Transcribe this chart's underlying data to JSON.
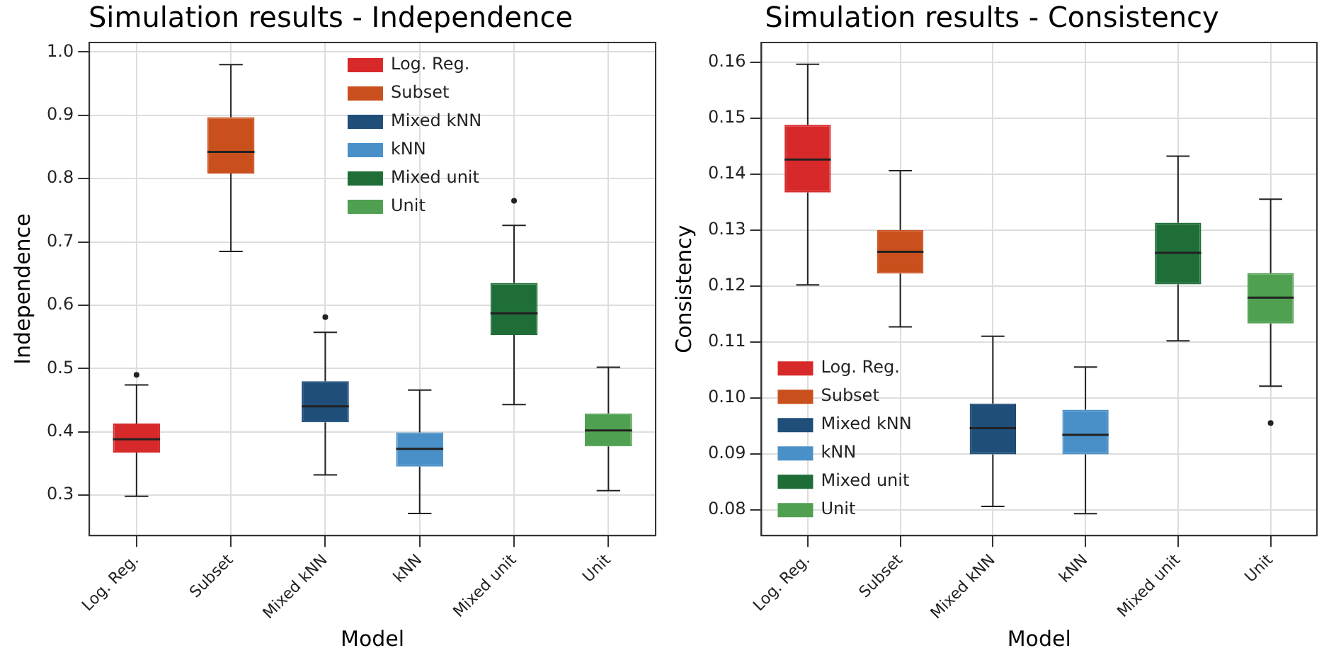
{
  "chart_data": [
    {
      "type": "box",
      "title": "Simulation results - Independence",
      "xlabel": "Model",
      "ylabel": "Independence",
      "categories": [
        "Log. Reg.",
        "Subset",
        "Mixed kNN",
        "kNN",
        "Mixed unit",
        "Unit"
      ],
      "series": [
        {
          "name": "Log. Reg.",
          "color": "#d7292a",
          "boxes": [
            {
              "low": 0.298,
              "q1": 0.367,
              "median": 0.388,
              "q3": 0.413,
              "high": 0.474,
              "outliers": [
                0.49
              ]
            },
            null,
            null,
            null,
            null,
            null
          ]
        },
        {
          "name": "Subset",
          "color": "#c9501c",
          "boxes": [
            null,
            {
              "low": 0.685,
              "q1": 0.808,
              "median": 0.842,
              "q3": 0.897,
              "high": 0.98
            },
            null,
            null,
            null,
            null
          ]
        },
        {
          "name": "Mixed kNN",
          "color": "#1f4e79",
          "boxes": [
            null,
            null,
            {
              "low": 0.332,
              "q1": 0.415,
              "median": 0.44,
              "q3": 0.48,
              "high": 0.557,
              "outliers": [
                0.581
              ]
            },
            null,
            null,
            null
          ]
        },
        {
          "name": "kNN",
          "color": "#4a90c8",
          "boxes": [
            null,
            null,
            null,
            {
              "low": 0.271,
              "q1": 0.345,
              "median": 0.373,
              "q3": 0.399,
              "high": 0.466
            },
            null,
            null
          ]
        },
        {
          "name": "Mixed unit",
          "color": "#1f6e38",
          "boxes": [
            null,
            null,
            null,
            null,
            {
              "low": 0.443,
              "q1": 0.553,
              "median": 0.587,
              "q3": 0.635,
              "high": 0.726,
              "outliers": [
                0.765
              ]
            },
            null
          ]
        },
        {
          "name": "Unit",
          "color": "#4fa050",
          "boxes": [
            null,
            null,
            null,
            null,
            null,
            {
              "low": 0.307,
              "q1": 0.377,
              "median": 0.402,
              "q3": 0.429,
              "high": 0.502
            }
          ]
        }
      ],
      "ylim": [
        0.236,
        1.015
      ],
      "yticks": [
        {
          "value": 0.3,
          "label": "0.3"
        },
        {
          "value": 0.4,
          "label": "0.4"
        },
        {
          "value": 0.5,
          "label": "0.5"
        },
        {
          "value": 0.6,
          "label": "0.6"
        },
        {
          "value": 0.7,
          "label": "0.7"
        },
        {
          "value": 0.8,
          "label": "0.8"
        },
        {
          "value": 0.9,
          "label": "0.9"
        },
        {
          "value": 1.0,
          "label": "1.0"
        }
      ],
      "grid": true,
      "legend": "top"
    },
    {
      "type": "box",
      "title": "Simulation results - Consistency",
      "xlabel": "Model",
      "ylabel": "Consistency",
      "categories": [
        "Log. Reg.",
        "Subset",
        "Mixed kNN",
        "kNN",
        "Mixed unit",
        "Unit"
      ],
      "series": [
        {
          "name": "Log. Reg.",
          "color": "#d7292a",
          "boxes": [
            {
              "low": 0.1202,
              "q1": 0.1367,
              "median": 0.1426,
              "q3": 0.1488,
              "high": 0.1596
            },
            null,
            null,
            null,
            null,
            null
          ]
        },
        {
          "name": "Subset",
          "color": "#c9501c",
          "boxes": [
            null,
            {
              "low": 0.1127,
              "q1": 0.1222,
              "median": 0.1261,
              "q3": 0.13,
              "high": 0.1406
            },
            null,
            null,
            null,
            null
          ]
        },
        {
          "name": "Mixed kNN",
          "color": "#1f4e79",
          "boxes": [
            null,
            null,
            {
              "low": 0.0806,
              "q1": 0.0899,
              "median": 0.0946,
              "q3": 0.099,
              "high": 0.111
            },
            null,
            null,
            null
          ]
        },
        {
          "name": "kNN",
          "color": "#4a90c8",
          "boxes": [
            null,
            null,
            null,
            {
              "low": 0.0793,
              "q1": 0.0899,
              "median": 0.0934,
              "q3": 0.0979,
              "high": 0.1055
            },
            null,
            null
          ]
        },
        {
          "name": "Mixed unit",
          "color": "#1f6e38",
          "boxes": [
            null,
            null,
            null,
            null,
            {
              "low": 0.1102,
              "q1": 0.1203,
              "median": 0.1259,
              "q3": 0.1313,
              "high": 0.1432
            },
            null
          ]
        },
        {
          "name": "Unit",
          "color": "#4fa050",
          "boxes": [
            null,
            null,
            null,
            null,
            null,
            {
              "low": 0.1021,
              "q1": 0.1133,
              "median": 0.1179,
              "q3": 0.1223,
              "high": 0.1355,
              "outliers": [
                0.0955
              ]
            }
          ]
        }
      ],
      "ylim": [
        0.0754,
        0.1635
      ],
      "yticks": [
        {
          "value": 0.08,
          "label": "0.08"
        },
        {
          "value": 0.09,
          "label": "0.09"
        },
        {
          "value": 0.1,
          "label": "0.10"
        },
        {
          "value": 0.11,
          "label": "0.11"
        },
        {
          "value": 0.12,
          "label": "0.12"
        },
        {
          "value": 0.13,
          "label": "0.13"
        },
        {
          "value": 0.14,
          "label": "0.14"
        },
        {
          "value": 0.15,
          "label": "0.15"
        },
        {
          "value": 0.16,
          "label": "0.16"
        }
      ],
      "grid": true,
      "legend": "bottom left"
    }
  ]
}
